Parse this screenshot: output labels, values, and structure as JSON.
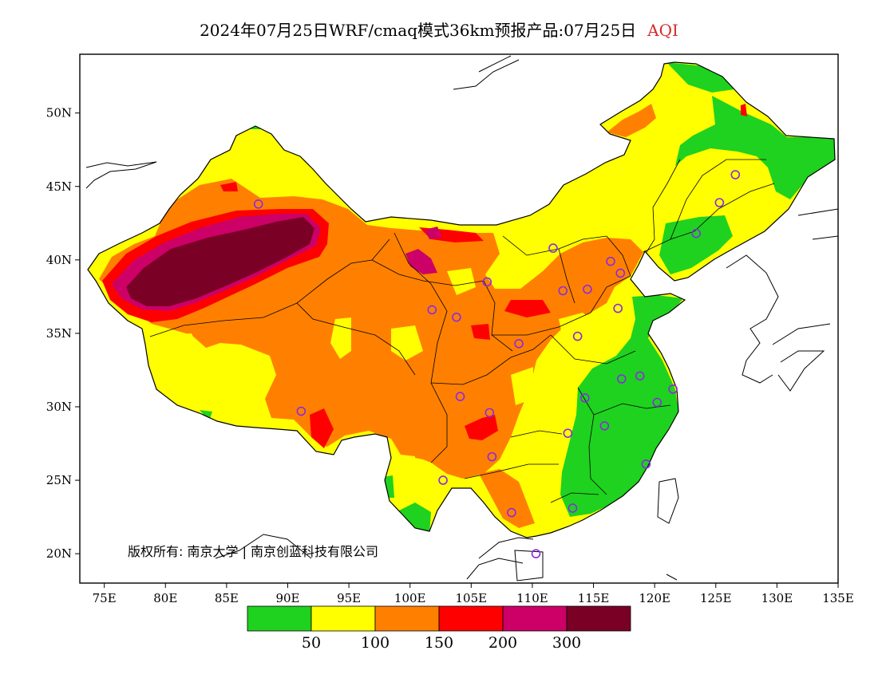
{
  "title": {
    "text": "2024年07月25日WRF/cmaq模式36km预报产品:07月25日",
    "variable": "AQI",
    "accent_color": "#d42a2a"
  },
  "map": {
    "lon_range": [
      73,
      135
    ],
    "lat_range": [
      18,
      54
    ],
    "x_ticks": [
      75,
      80,
      85,
      90,
      95,
      100,
      105,
      110,
      115,
      120,
      125,
      130,
      135
    ],
    "x_tick_labels": [
      "75E",
      "80E",
      "85E",
      "90E",
      "95E",
      "100E",
      "105E",
      "110E",
      "115E",
      "120E",
      "125E",
      "130E",
      "135E"
    ],
    "y_ticks": [
      20,
      25,
      30,
      35,
      40,
      45,
      50
    ],
    "y_tick_labels": [
      "20N",
      "25N",
      "30N",
      "35N",
      "40N",
      "45N",
      "50N"
    ],
    "copyright": "版权所有: 南京大学 | 南京创蓝科技有限公司",
    "colors": {
      "green": "#1fd21f",
      "yellow": "#ffff00",
      "orange": "#ff8000",
      "red": "#ff0000",
      "magenta": "#cc0066",
      "maroon": "#7a0026",
      "station_marker": "#8a2be2",
      "ocean": "#ffffff",
      "coastline": "#000000"
    },
    "stations": [
      {
        "lon": 87.6,
        "lat": 43.8
      },
      {
        "lon": 91.1,
        "lat": 29.7
      },
      {
        "lon": 101.8,
        "lat": 36.6
      },
      {
        "lon": 103.8,
        "lat": 36.1
      },
      {
        "lon": 106.3,
        "lat": 38.5
      },
      {
        "lon": 104.1,
        "lat": 30.7
      },
      {
        "lon": 106.5,
        "lat": 29.6
      },
      {
        "lon": 106.7,
        "lat": 26.6
      },
      {
        "lon": 102.7,
        "lat": 25.0
      },
      {
        "lon": 108.9,
        "lat": 34.3
      },
      {
        "lon": 111.7,
        "lat": 40.8
      },
      {
        "lon": 112.5,
        "lat": 37.9
      },
      {
        "lon": 114.5,
        "lat": 38.0
      },
      {
        "lon": 116.4,
        "lat": 39.9
      },
      {
        "lon": 117.2,
        "lat": 39.1
      },
      {
        "lon": 117.0,
        "lat": 36.7
      },
      {
        "lon": 113.7,
        "lat": 34.8
      },
      {
        "lon": 117.3,
        "lat": 31.9
      },
      {
        "lon": 118.8,
        "lat": 32.1
      },
      {
        "lon": 121.5,
        "lat": 31.2
      },
      {
        "lon": 120.2,
        "lat": 30.3
      },
      {
        "lon": 114.3,
        "lat": 30.6
      },
      {
        "lon": 112.9,
        "lat": 28.2
      },
      {
        "lon": 115.9,
        "lat": 28.7
      },
      {
        "lon": 119.3,
        "lat": 26.1
      },
      {
        "lon": 113.3,
        "lat": 23.1
      },
      {
        "lon": 108.3,
        "lat": 22.8
      },
      {
        "lon": 110.3,
        "lat": 20.0
      },
      {
        "lon": 123.4,
        "lat": 41.8
      },
      {
        "lon": 125.3,
        "lat": 43.9
      },
      {
        "lon": 126.6,
        "lat": 45.8
      }
    ]
  },
  "legend": {
    "bins": [
      {
        "color": "#1fd21f"
      },
      {
        "color": "#ffff00"
      },
      {
        "color": "#ff8000"
      },
      {
        "color": "#ff0000"
      },
      {
        "color": "#cc0066"
      },
      {
        "color": "#7a0026"
      }
    ],
    "labels": [
      "50",
      "100",
      "150",
      "200",
      "300"
    ]
  }
}
